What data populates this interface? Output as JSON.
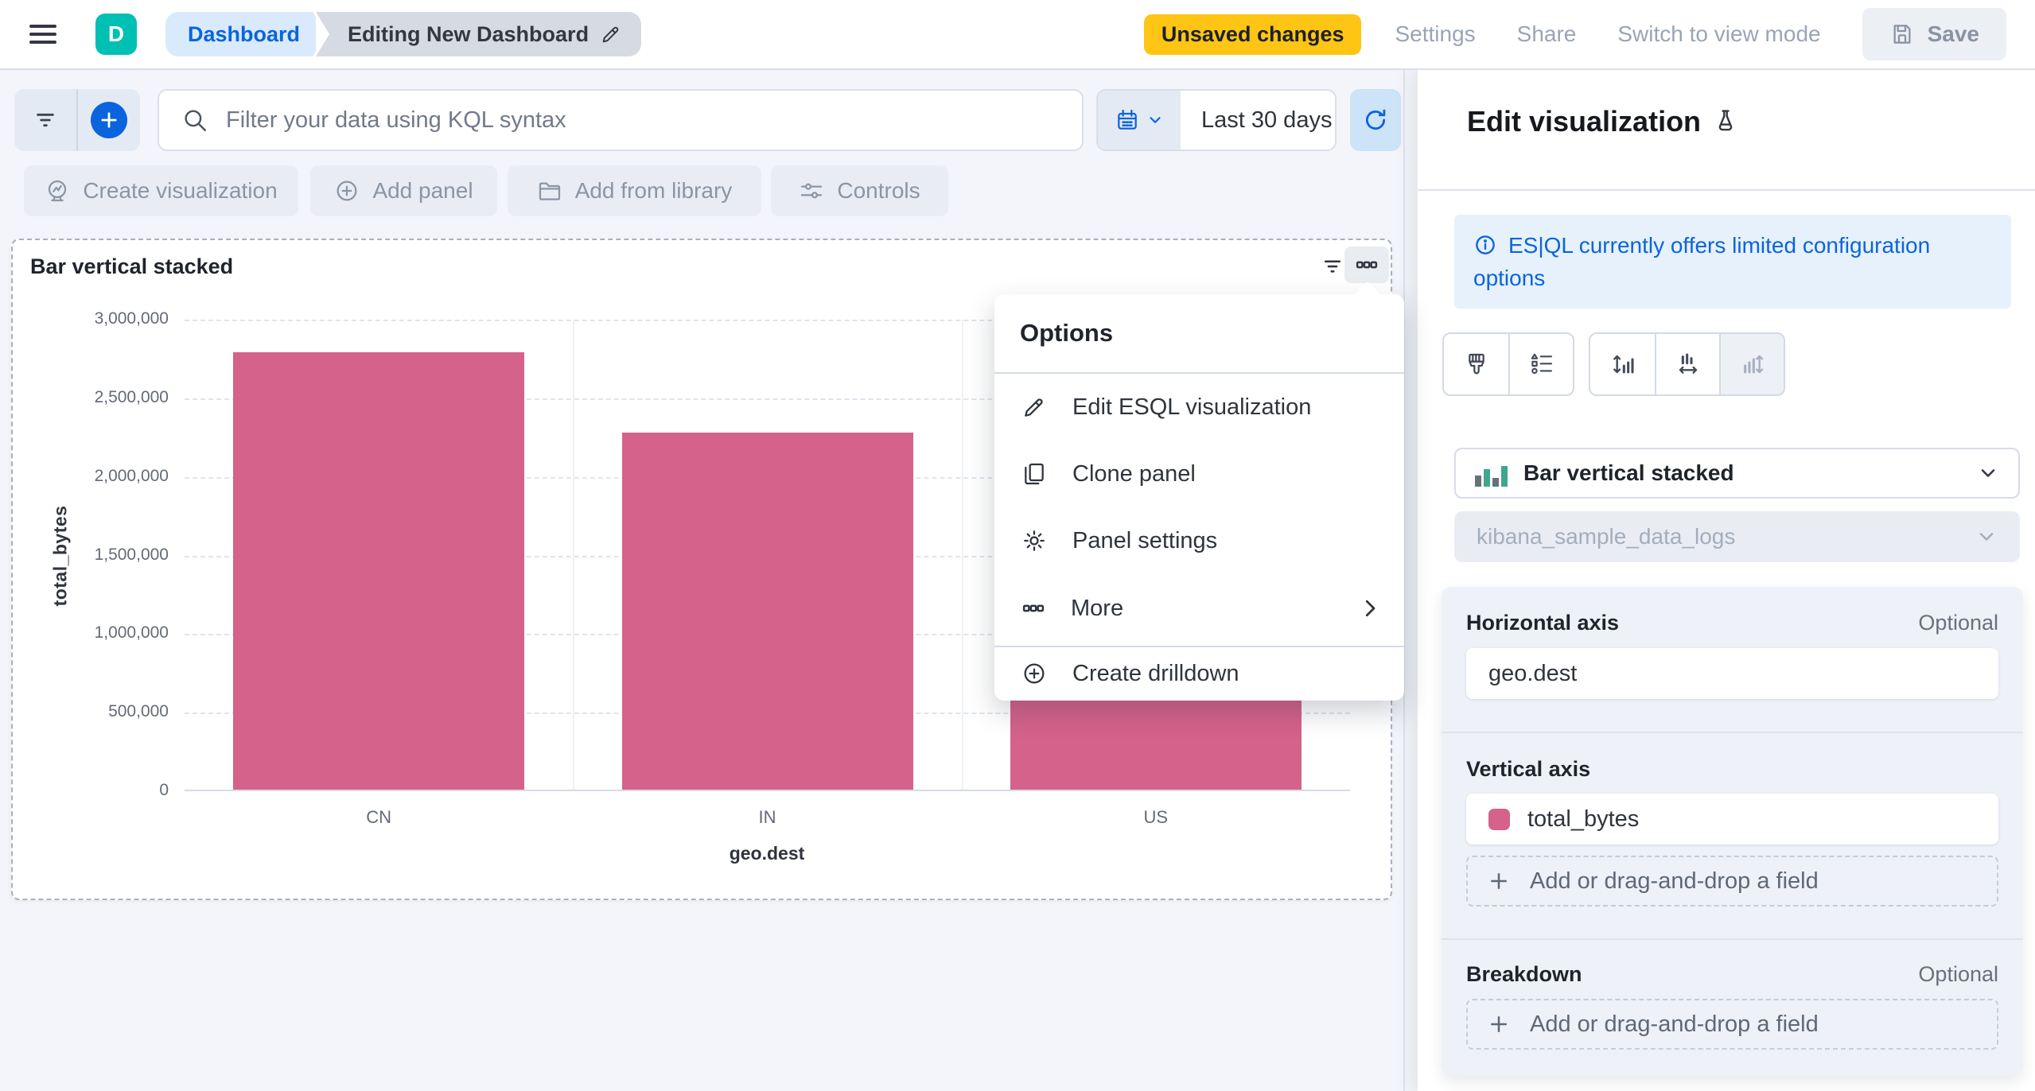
{
  "header": {
    "logo_letter": "D",
    "breadcrumbs": {
      "root": "Dashboard",
      "current": "Editing New Dashboard"
    },
    "unsaved_badge": "Unsaved changes",
    "links": {
      "settings": "Settings",
      "share": "Share",
      "view_mode": "Switch to view mode"
    },
    "save_label": "Save"
  },
  "query_bar": {
    "search_placeholder": "Filter your data using KQL syntax",
    "time_range": "Last 30 days"
  },
  "toolbar": {
    "buttons": [
      {
        "label": "Create visualization",
        "icon": "lens-icon"
      },
      {
        "label": "Add panel",
        "icon": "plus-circle-icon"
      },
      {
        "label": "Add from library",
        "icon": "folder-icon"
      },
      {
        "label": "Controls",
        "icon": "sliders-icon"
      }
    ]
  },
  "panel": {
    "title": "Bar vertical stacked"
  },
  "options_menu": {
    "title": "Options",
    "items": [
      {
        "label": "Edit ESQL visualization",
        "icon": "pencil-icon"
      },
      {
        "label": "Clone panel",
        "icon": "copy-icon"
      },
      {
        "label": "Panel settings",
        "icon": "gear-icon"
      },
      {
        "label": "More",
        "icon": "boxes-icon",
        "has_submenu": true
      },
      {
        "label": "Create drilldown",
        "icon": "plus-circle-icon"
      }
    ]
  },
  "flyout": {
    "title": "Edit visualization",
    "callout": "ES|QL currently offers limited configuration options",
    "chart_type": "Bar vertical stacked",
    "data_source": "kibana_sample_data_logs",
    "sections": {
      "horizontal_axis": {
        "label": "Horizontal axis",
        "optional": "Optional",
        "field": "geo.dest"
      },
      "vertical_axis": {
        "label": "Vertical axis",
        "field": "total_bytes",
        "add_placeholder": "Add or drag-and-drop a field"
      },
      "breakdown": {
        "label": "Breakdown",
        "optional": "Optional",
        "add_placeholder": "Add or drag-and-drop a field"
      }
    }
  },
  "colors": {
    "primary_blue": "#0b64dd",
    "logo_teal": "#00bfb3",
    "warning_yellow": "#fec514",
    "bar_pink": "#d4628a"
  },
  "chart_data": {
    "type": "bar",
    "title": "Bar vertical stacked",
    "categories": [
      "CN",
      "IN",
      "US"
    ],
    "series": [
      {
        "name": "total_bytes",
        "values": [
          2780000,
          2270000,
          1700000
        ]
      }
    ],
    "xlabel": "geo.dest",
    "ylabel": "total_bytes",
    "ylim": [
      0,
      3000000
    ],
    "yticks": [
      {
        "value": 0,
        "label": "0"
      },
      {
        "value": 500000,
        "label": "500,000"
      },
      {
        "value": 1000000,
        "label": "1,000,000"
      },
      {
        "value": 1500000,
        "label": "1,500,000"
      },
      {
        "value": 2000000,
        "label": "2,000,000"
      },
      {
        "value": 2500000,
        "label": "2,500,000"
      },
      {
        "value": 3000000,
        "label": "3,000,000"
      }
    ],
    "bar_color": "#d4628a",
    "grid": "horizontal-dashed",
    "legend": "none"
  }
}
